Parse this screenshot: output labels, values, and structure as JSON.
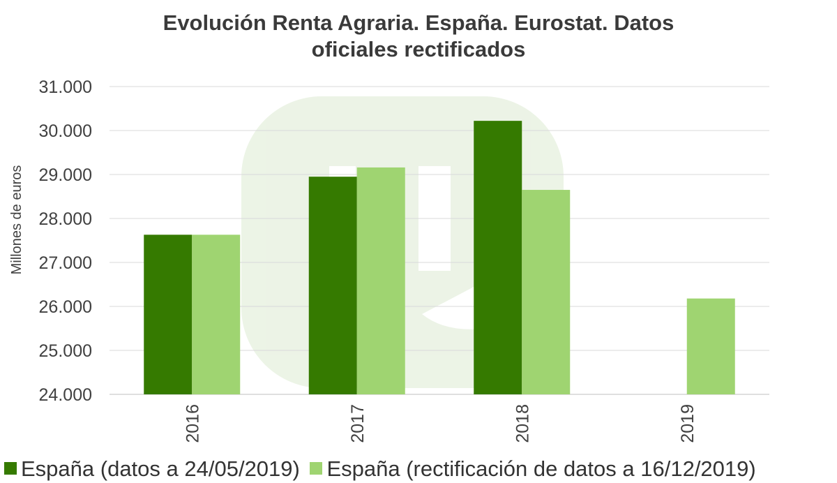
{
  "chart_data": {
    "type": "bar",
    "title": [
      "Evolución Renta Agraria. España. Eurostat. Datos",
      "oficiales rectificados"
    ],
    "ylabel": "Millones de euros",
    "xlabel": "",
    "categories": [
      "2016",
      "2017",
      "2018",
      "2019"
    ],
    "ylim": [
      24000,
      31000
    ],
    "yticks": [
      {
        "value": 24000,
        "label": "24.000"
      },
      {
        "value": 25000,
        "label": "25.000"
      },
      {
        "value": 26000,
        "label": "26.000"
      },
      {
        "value": 27000,
        "label": "27.000"
      },
      {
        "value": 28000,
        "label": "28.000"
      },
      {
        "value": 29000,
        "label": "29.000"
      },
      {
        "value": 30000,
        "label": "30.000"
      },
      {
        "value": 31000,
        "label": "31.000"
      }
    ],
    "grid": true,
    "legend_position": "bottom",
    "series": [
      {
        "name": "España (datos a 24/05/2019)",
        "color": "#357a00",
        "values": [
          27630,
          28950,
          30220,
          null
        ]
      },
      {
        "name": "España (rectificación de datos a 16/12/2019)",
        "color": "#9fd471",
        "values": [
          27630,
          29160,
          28650,
          26180
        ]
      }
    ]
  }
}
